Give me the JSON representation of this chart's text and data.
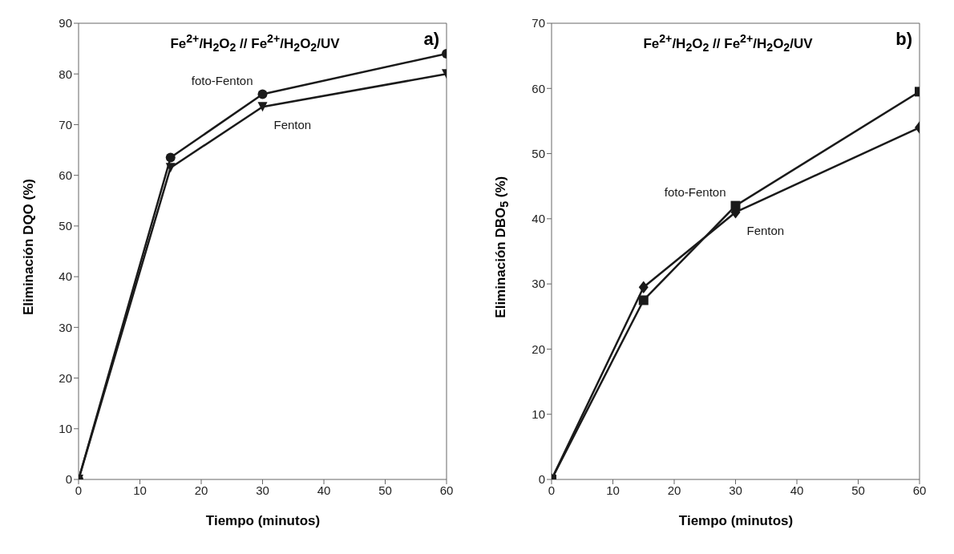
{
  "chart_data": [
    {
      "type": "line",
      "title": "Fe$^{2+}$/H$_{2}$O$_{2}$ // Fe$^{2+}$/H$_{2}$O$_{2}$/UV",
      "xlabel": "Tiempo (minutos)",
      "ylabel": "Eliminación DQO (%)",
      "annotations": [
        "a)"
      ],
      "x": [
        0,
        15,
        30,
        60
      ],
      "series": [
        {
          "name": "foto-Fenton",
          "color": "#1a1a1a",
          "marker": "circle",
          "values": [
            0,
            63.5,
            76,
            84
          ]
        },
        {
          "name": "Fenton",
          "color": "#1a1a1a",
          "marker": "triangle",
          "values": [
            0,
            61.5,
            73.5,
            80
          ]
        }
      ],
      "xlim": [
        0,
        60
      ],
      "xticks": [
        0,
        10,
        20,
        30,
        40,
        50,
        60
      ],
      "ylim": [
        0,
        90
      ],
      "yticks": [
        0,
        10,
        20,
        30,
        40,
        50,
        60,
        70,
        80,
        90
      ],
      "grid": false,
      "legend": false
    },
    {
      "type": "line",
      "title": "Fe$^{2+}$/H$_{2}$O$_{2}$ // Fe$^{2+}$/H$_{2}$O$_{2}$/UV",
      "xlabel": "Tiempo (minutos)",
      "ylabel": "Eliminación DBO$_{5}$ (%)",
      "annotations": [
        "b)"
      ],
      "x": [
        0,
        15,
        30,
        60
      ],
      "series": [
        {
          "name": "foto-Fenton",
          "color": "#1a1a1a",
          "marker": "square",
          "values": [
            0,
            27.5,
            42,
            59.5
          ]
        },
        {
          "name": "Fenton",
          "color": "#1a1a1a",
          "marker": "diamond",
          "values": [
            0,
            29.5,
            41,
            54
          ]
        }
      ],
      "xlim": [
        0,
        60
      ],
      "xticks": [
        0,
        10,
        20,
        30,
        40,
        50,
        60
      ],
      "ylim": [
        0,
        70
      ],
      "yticks": [
        0,
        10,
        20,
        30,
        40,
        50,
        60,
        70
      ],
      "grid": false,
      "legend": false
    }
  ]
}
